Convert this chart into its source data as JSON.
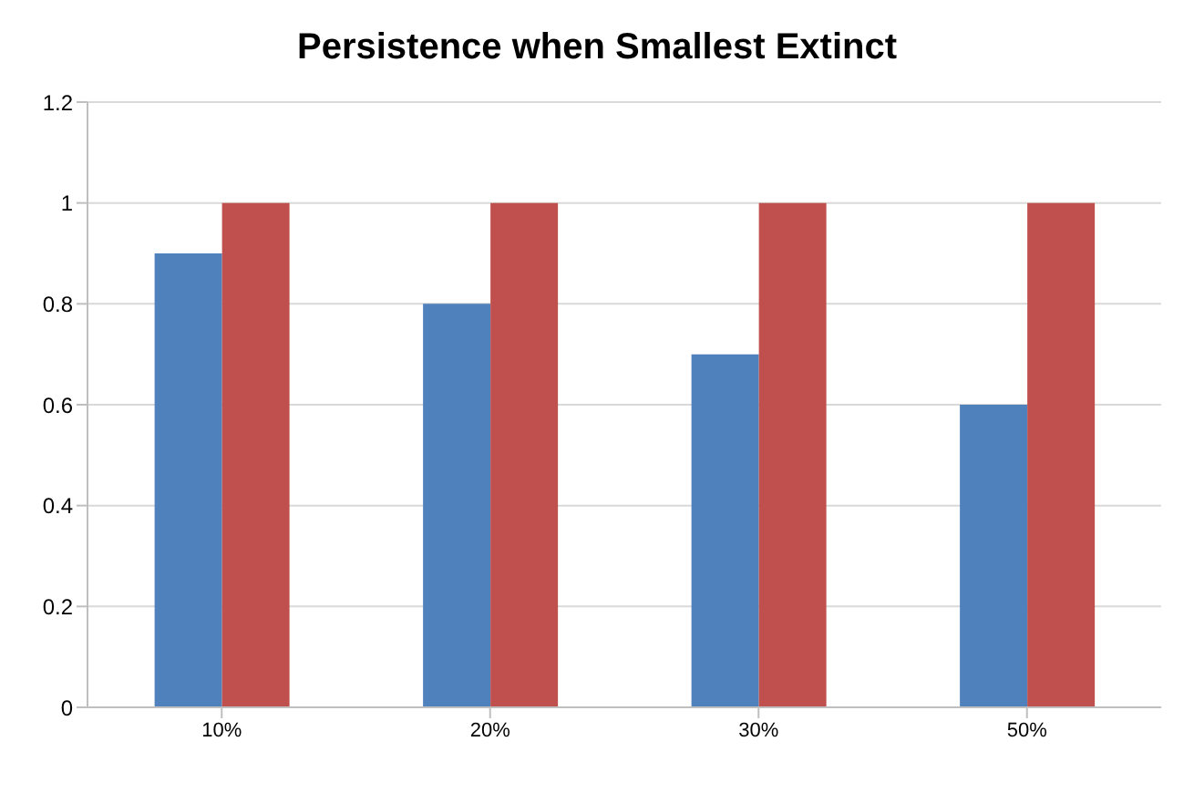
{
  "chart_data": {
    "type": "bar",
    "title": "Persistence when Smallest Extinct",
    "categories": [
      "10%",
      "20%",
      "30%",
      "50%"
    ],
    "series": [
      {
        "color": "#4f81bd",
        "values": [
          0.9,
          0.8,
          0.7,
          0.6
        ]
      },
      {
        "color": "#c0504d",
        "values": [
          1,
          1,
          1,
          1
        ]
      }
    ],
    "ylim": [
      0,
      1.2
    ],
    "yticks": [
      0,
      0.2,
      0.4,
      0.6,
      0.8,
      1,
      1.2
    ],
    "grid": "y",
    "legend": false
  }
}
